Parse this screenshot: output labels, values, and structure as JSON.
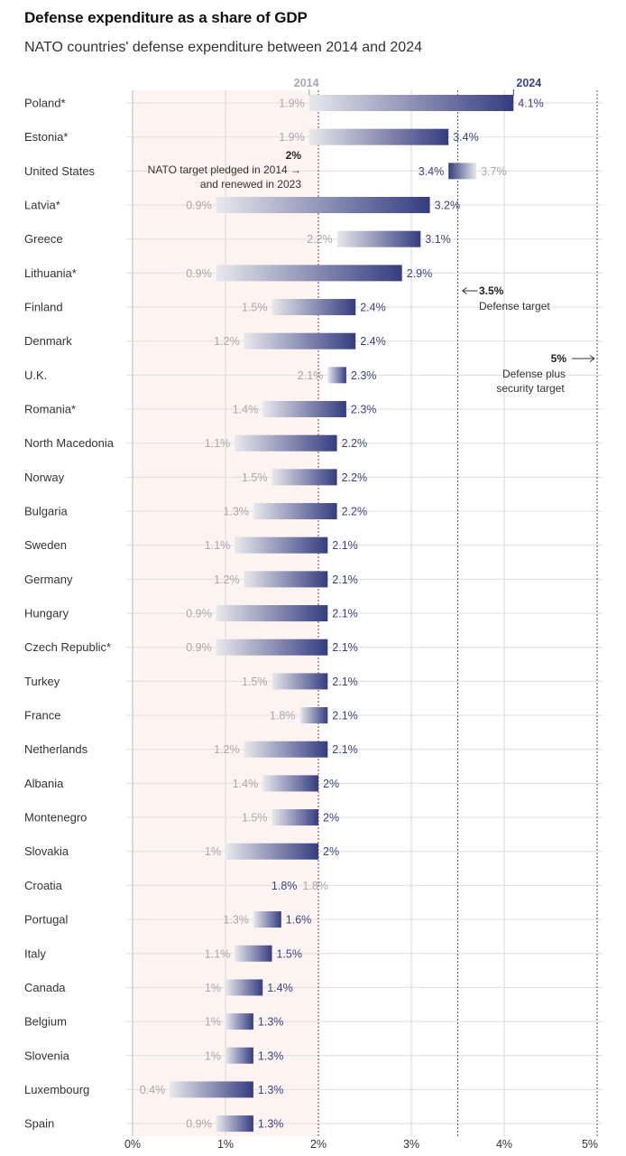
{
  "header": {
    "title": "Defense expenditure as a share of GDP",
    "subtitle": "NATO countries' defense expenditure between 2014 and 2024"
  },
  "colors": {
    "bar_2024": "#353d80",
    "bar_2014": "#e6e6ea",
    "label_2014": "#a8a8ae",
    "label_2024": "#3c4384",
    "below_target_shade": "#fdf3f1",
    "target_line": "#9b2c2c",
    "gridline": "#e3e3e3"
  },
  "chart_data": {
    "type": "dumbbell-bar",
    "title": "Defense expenditure as a share of GDP",
    "subtitle": "NATO countries' defense expenditure between 2014 and 2024",
    "xlabel": "",
    "ylabel": "",
    "xlim": [
      0,
      5
    ],
    "x_ticks": [
      "0%",
      "1%",
      "2%",
      "3%",
      "4%",
      "5%"
    ],
    "x_tick_values": [
      0,
      1,
      2,
      3,
      4,
      5
    ],
    "grid": true,
    "series_labels": {
      "start": "2014",
      "end": "2024"
    },
    "categories": [
      "Poland*",
      "Estonia*",
      "United States",
      "Latvia*",
      "Greece",
      "Lithuania*",
      "Finland",
      "Denmark",
      "U.K.",
      "Romania*",
      "North Macedonia",
      "Norway",
      "Bulgaria",
      "Sweden",
      "Germany",
      "Hungary",
      "Czech Republic*",
      "Turkey",
      "France",
      "Netherlands",
      "Albania",
      "Montenegro",
      "Slovakia",
      "Croatia",
      "Portugal",
      "Italy",
      "Canada",
      "Belgium",
      "Slovenia",
      "Luxembourg",
      "Spain"
    ],
    "series": [
      {
        "name": "2014",
        "values": [
          1.9,
          1.9,
          3.7,
          0.9,
          2.2,
          0.9,
          1.5,
          1.2,
          2.1,
          1.4,
          1.1,
          1.5,
          1.3,
          1.1,
          1.2,
          0.9,
          0.9,
          1.5,
          1.8,
          1.2,
          1.4,
          1.5,
          1.0,
          1.8,
          1.3,
          1.1,
          1.0,
          1.0,
          1.0,
          0.4,
          0.9
        ]
      },
      {
        "name": "2024",
        "values": [
          4.1,
          3.4,
          3.4,
          3.2,
          3.1,
          2.9,
          2.4,
          2.4,
          2.3,
          2.3,
          2.2,
          2.2,
          2.2,
          2.1,
          2.1,
          2.1,
          2.1,
          2.1,
          2.1,
          2.1,
          2.0,
          2.0,
          2.0,
          1.8,
          1.6,
          1.5,
          1.4,
          1.3,
          1.3,
          1.3,
          1.3
        ]
      }
    ],
    "labels_2014": [
      "1.9%",
      "1.9%",
      "3.7%",
      "0.9%",
      "2.2%",
      "0.9%",
      "1.5%",
      "1.2%",
      "2.1%",
      "1.4%",
      "1.1%",
      "1.5%",
      "1.3%",
      "1.1%",
      "1.2%",
      "0.9%",
      "0.9%",
      "1.5%",
      "1.8%",
      "1.2%",
      "1.4%",
      "1.5%",
      "1%",
      "1.8%",
      "1.3%",
      "1.1%",
      "1%",
      "1%",
      "1%",
      "0.4%",
      "0.9%"
    ],
    "labels_2024": [
      "4.1%",
      "3.4%",
      "3.4%",
      "3.2%",
      "3.1%",
      "2.9%",
      "2.4%",
      "2.4%",
      "2.3%",
      "2.3%",
      "2.2%",
      "2.2%",
      "2.2%",
      "2.1%",
      "2.1%",
      "2.1%",
      "2.1%",
      "2.1%",
      "2.1%",
      "2.1%",
      "2%",
      "2%",
      "2%",
      "1.8%",
      "1.6%",
      "1.5%",
      "1.4%",
      "1.3%",
      "1.3%",
      "1.3%",
      "1.3%"
    ],
    "reference_lines": [
      {
        "value": 2,
        "label_value": "2%",
        "label_lines": [
          "NATO target pledged in 2014",
          "and renewed in 2023"
        ],
        "arrow": "→",
        "style": "dotted-red"
      },
      {
        "value": 3.5,
        "label_value": "3.5%",
        "label_lines": [
          "Defense target"
        ],
        "arrow": "←",
        "style": "dotted-gray"
      },
      {
        "value": 5,
        "label_value": "5%",
        "label_lines": [
          "Defense plus",
          "security target"
        ],
        "arrow": "→",
        "style": "dotted-gray"
      }
    ],
    "shaded_region": {
      "from": 0,
      "to": 2,
      "meaning": "below NATO 2% target"
    }
  }
}
